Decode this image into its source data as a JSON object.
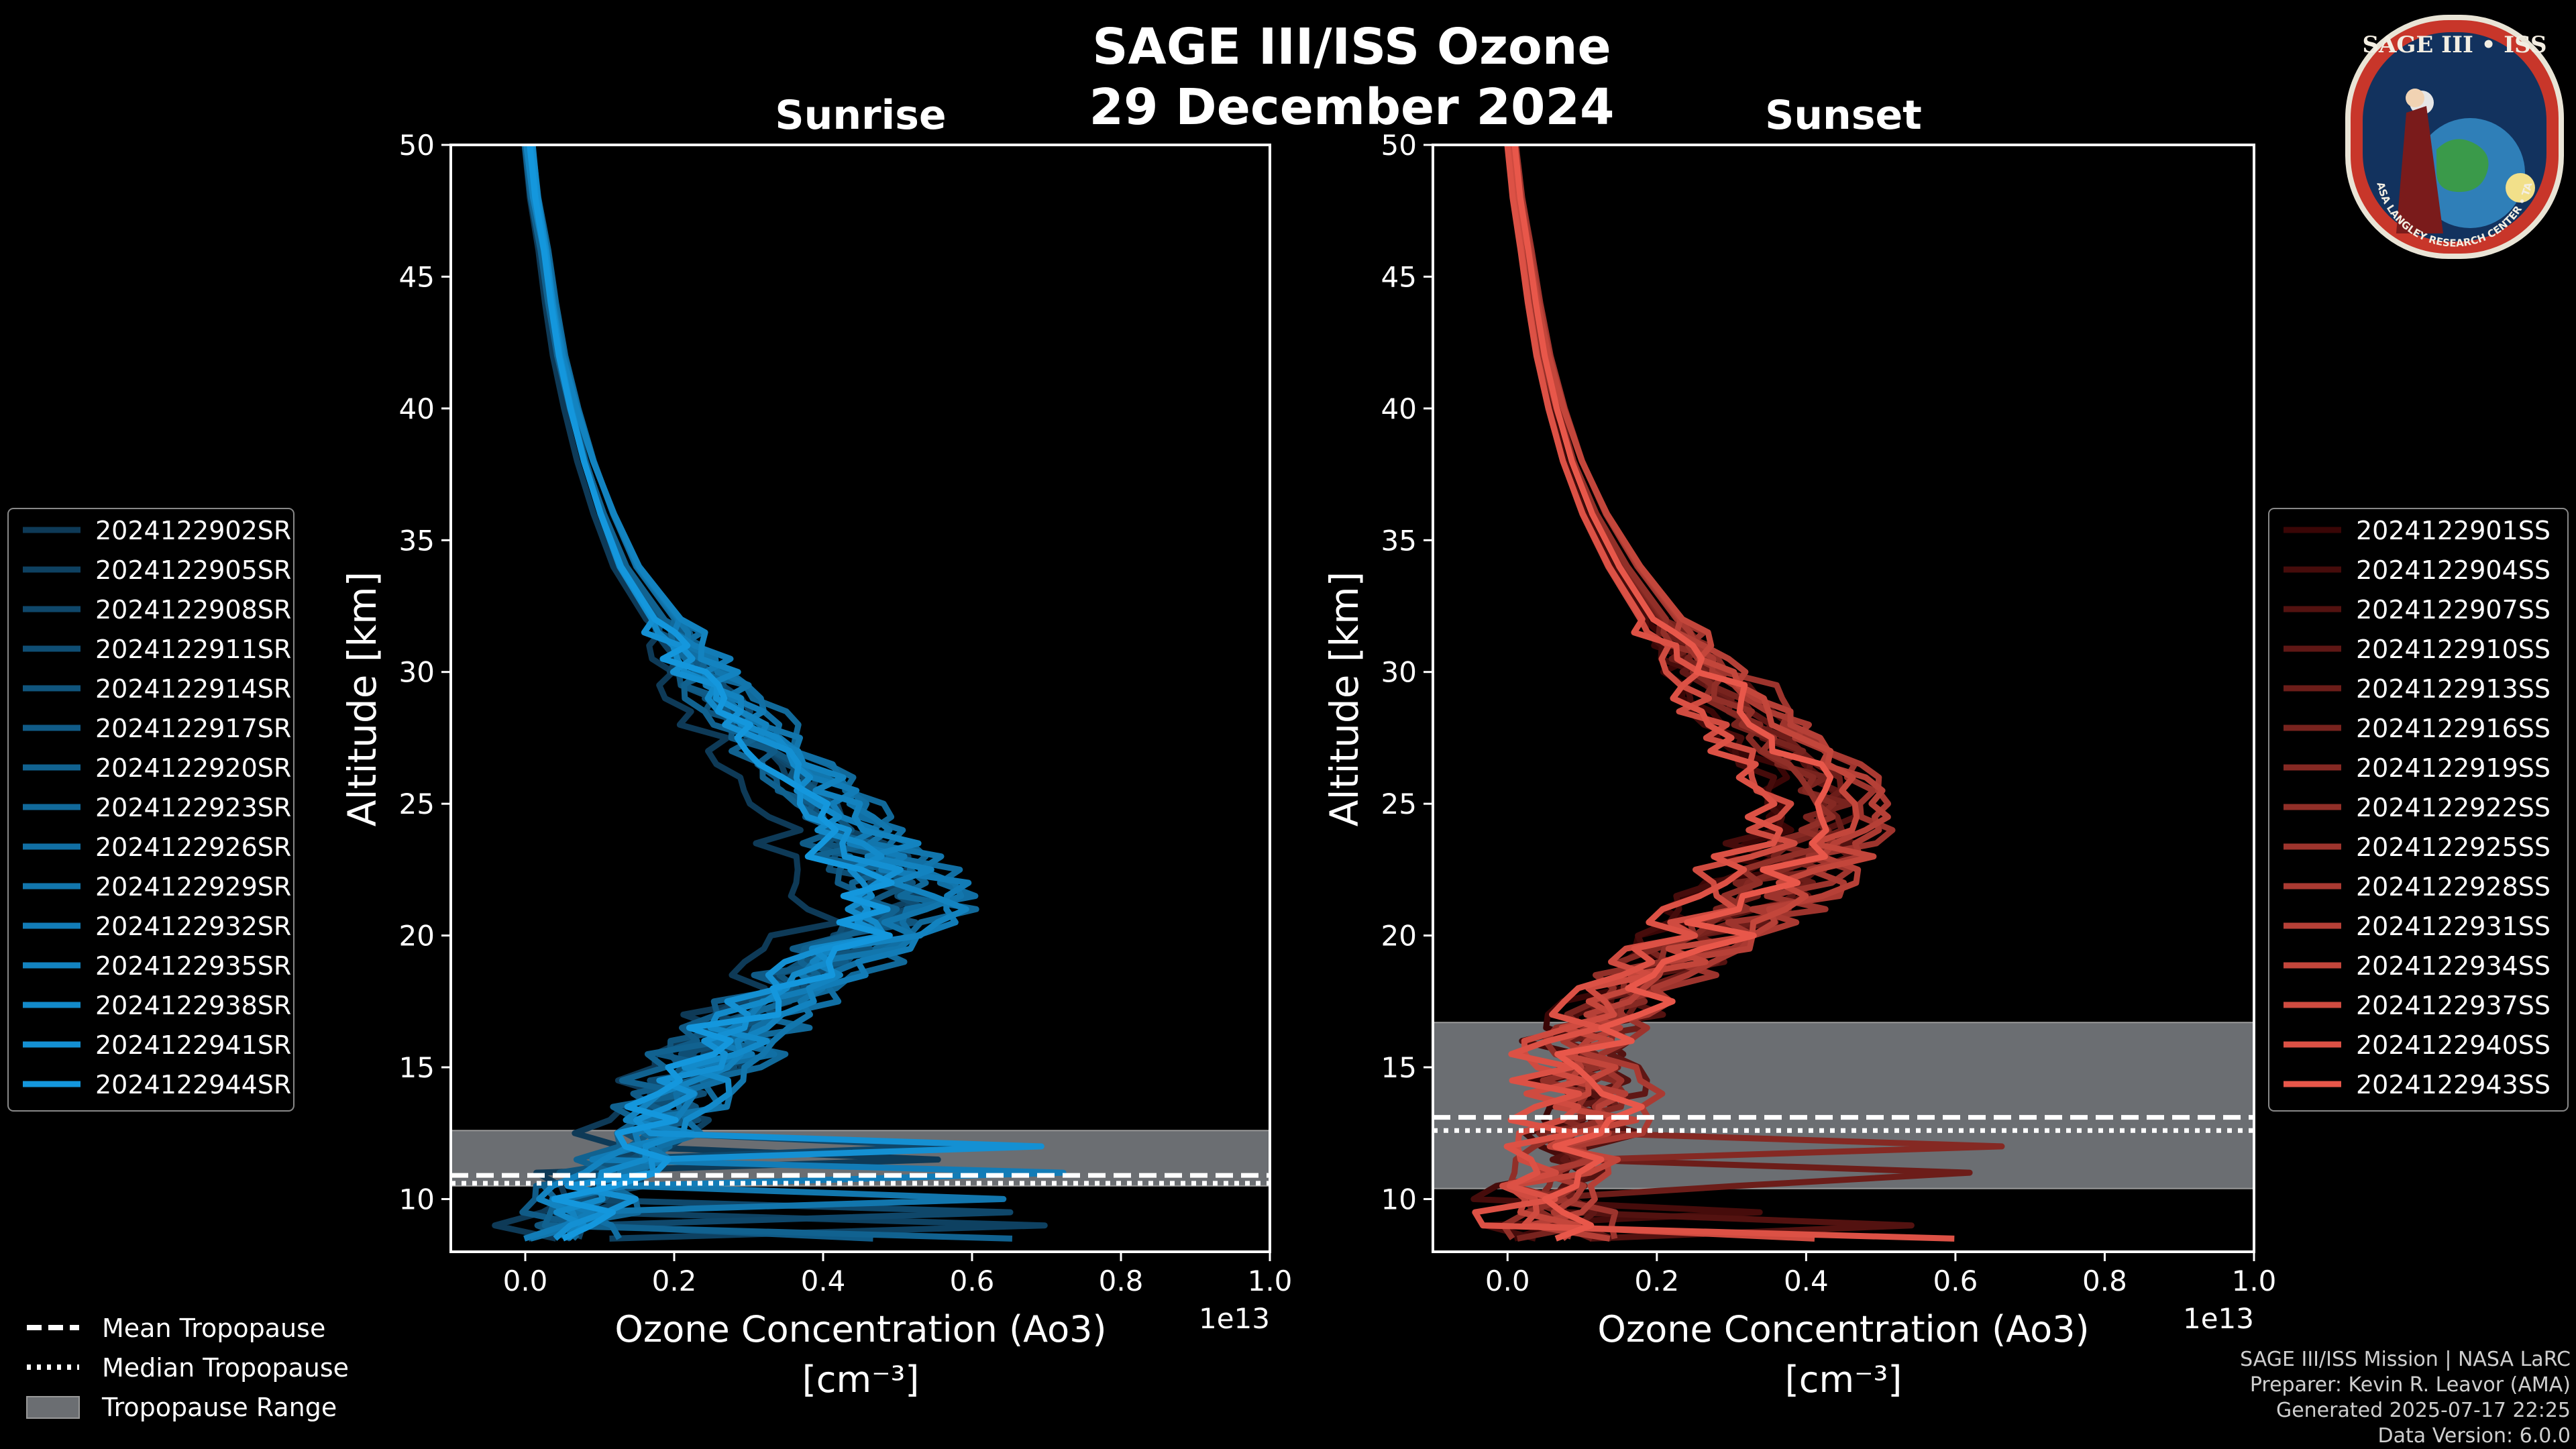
{
  "figure": {
    "title_line1": "SAGE III/ISS Ozone",
    "title_line2": "29 December 2024"
  },
  "chart_data": [
    {
      "type": "line",
      "name": "sunrise",
      "title": "Sunrise",
      "xlabel_line1": "Ozone Concentration (Ao3)",
      "xlabel_line2": "[cm⁻³]",
      "x_multiplier_label": "1e13",
      "ylabel": "Altitude [km]",
      "xlim": [
        -0.1,
        1.0
      ],
      "ylim": [
        8,
        50
      ],
      "xticks": [
        0.0,
        0.2,
        0.4,
        0.6,
        0.8,
        1.0
      ],
      "xtick_labels": [
        "0.0",
        "0.2",
        "0.4",
        "0.6",
        "0.8",
        "1.0"
      ],
      "yticks": [
        10,
        15,
        20,
        25,
        30,
        35,
        40,
        45,
        50
      ],
      "ytick_labels": [
        "10",
        "15",
        "20",
        "25",
        "30",
        "35",
        "40",
        "45",
        "50"
      ],
      "tropopause": {
        "mean": 10.9,
        "median": 10.6,
        "range": [
          10.5,
          12.6
        ]
      },
      "color_range": [
        "#0e3a57",
        "#1497dd"
      ],
      "base_profile": {
        "altitude": [
          8.5,
          10,
          12,
          14,
          16,
          18,
          20,
          21,
          22,
          24,
          26,
          28,
          30,
          32,
          34,
          36,
          38,
          40,
          42,
          44,
          46,
          48,
          50
        ],
        "concentration": [
          0.05,
          0.08,
          0.16,
          0.21,
          0.27,
          0.36,
          0.47,
          0.52,
          0.5,
          0.44,
          0.38,
          0.3,
          0.24,
          0.19,
          0.14,
          0.11,
          0.085,
          0.065,
          0.048,
          0.036,
          0.026,
          0.013,
          0.005
        ]
      },
      "series": [
        {
          "name": "2024122902SR"
        },
        {
          "name": "2024122905SR"
        },
        {
          "name": "2024122908SR"
        },
        {
          "name": "2024122911SR"
        },
        {
          "name": "2024122914SR"
        },
        {
          "name": "2024122917SR"
        },
        {
          "name": "2024122920SR"
        },
        {
          "name": "2024122923SR"
        },
        {
          "name": "2024122926SR"
        },
        {
          "name": "2024122929SR"
        },
        {
          "name": "2024122932SR"
        },
        {
          "name": "2024122935SR"
        },
        {
          "name": "2024122938SR"
        },
        {
          "name": "2024122941SR"
        },
        {
          "name": "2024122944SR"
        }
      ]
    },
    {
      "type": "line",
      "name": "sunset",
      "title": "Sunset",
      "xlabel_line1": "Ozone Concentration (Ao3)",
      "xlabel_line2": "[cm⁻³]",
      "x_multiplier_label": "1e13",
      "ylabel": "Altitude [km]",
      "xlim": [
        -0.1,
        1.0
      ],
      "ylim": [
        8,
        50
      ],
      "xticks": [
        0.0,
        0.2,
        0.4,
        0.6,
        0.8,
        1.0
      ],
      "xtick_labels": [
        "0.0",
        "0.2",
        "0.4",
        "0.6",
        "0.8",
        "1.0"
      ],
      "yticks": [
        10,
        15,
        20,
        25,
        30,
        35,
        40,
        45,
        50
      ],
      "ytick_labels": [
        "10",
        "15",
        "20",
        "25",
        "30",
        "35",
        "40",
        "45",
        "50"
      ],
      "tropopause": {
        "mean": 13.1,
        "median": 12.6,
        "range": [
          10.4,
          16.7
        ]
      },
      "color_range": [
        "#3a0606",
        "#e8574a"
      ],
      "base_profile": {
        "altitude": [
          8.5,
          10,
          12,
          14,
          16,
          18,
          20,
          22,
          24,
          25,
          26,
          28,
          30,
          32,
          34,
          36,
          38,
          40,
          42,
          44,
          46,
          48,
          50
        ],
        "concentration": [
          0.07,
          0.05,
          0.1,
          0.12,
          0.1,
          0.17,
          0.27,
          0.37,
          0.43,
          0.44,
          0.42,
          0.34,
          0.27,
          0.21,
          0.16,
          0.12,
          0.09,
          0.068,
          0.05,
          0.037,
          0.026,
          0.014,
          0.006
        ]
      },
      "series": [
        {
          "name": "2024122901SS"
        },
        {
          "name": "2024122904SS"
        },
        {
          "name": "2024122907SS"
        },
        {
          "name": "2024122910SS"
        },
        {
          "name": "2024122913SS"
        },
        {
          "name": "2024122916SS"
        },
        {
          "name": "2024122919SS"
        },
        {
          "name": "2024122922SS"
        },
        {
          "name": "2024122925SS"
        },
        {
          "name": "2024122928SS"
        },
        {
          "name": "2024122931SS"
        },
        {
          "name": "2024122934SS"
        },
        {
          "name": "2024122937SS"
        },
        {
          "name": "2024122940SS"
        },
        {
          "name": "2024122943SS"
        }
      ]
    }
  ],
  "tropopause_legend": {
    "mean": "Mean Tropopause",
    "median": "Median Tropopause",
    "range": "Tropopause Range"
  },
  "footer": {
    "line1": "SAGE III/ISS Mission | NASA LaRC",
    "line2": "Preparer: Kevin R. Leavor (AMA)",
    "line3": "Generated 2025-07-17 22:25",
    "line4": "Data Version: 6.0.0"
  },
  "badge": {
    "title": "SAGE III • ISS",
    "ring_text": "BALL • NASA LANGLEY RESEARCH CENTER • TAS-I • ESA"
  }
}
